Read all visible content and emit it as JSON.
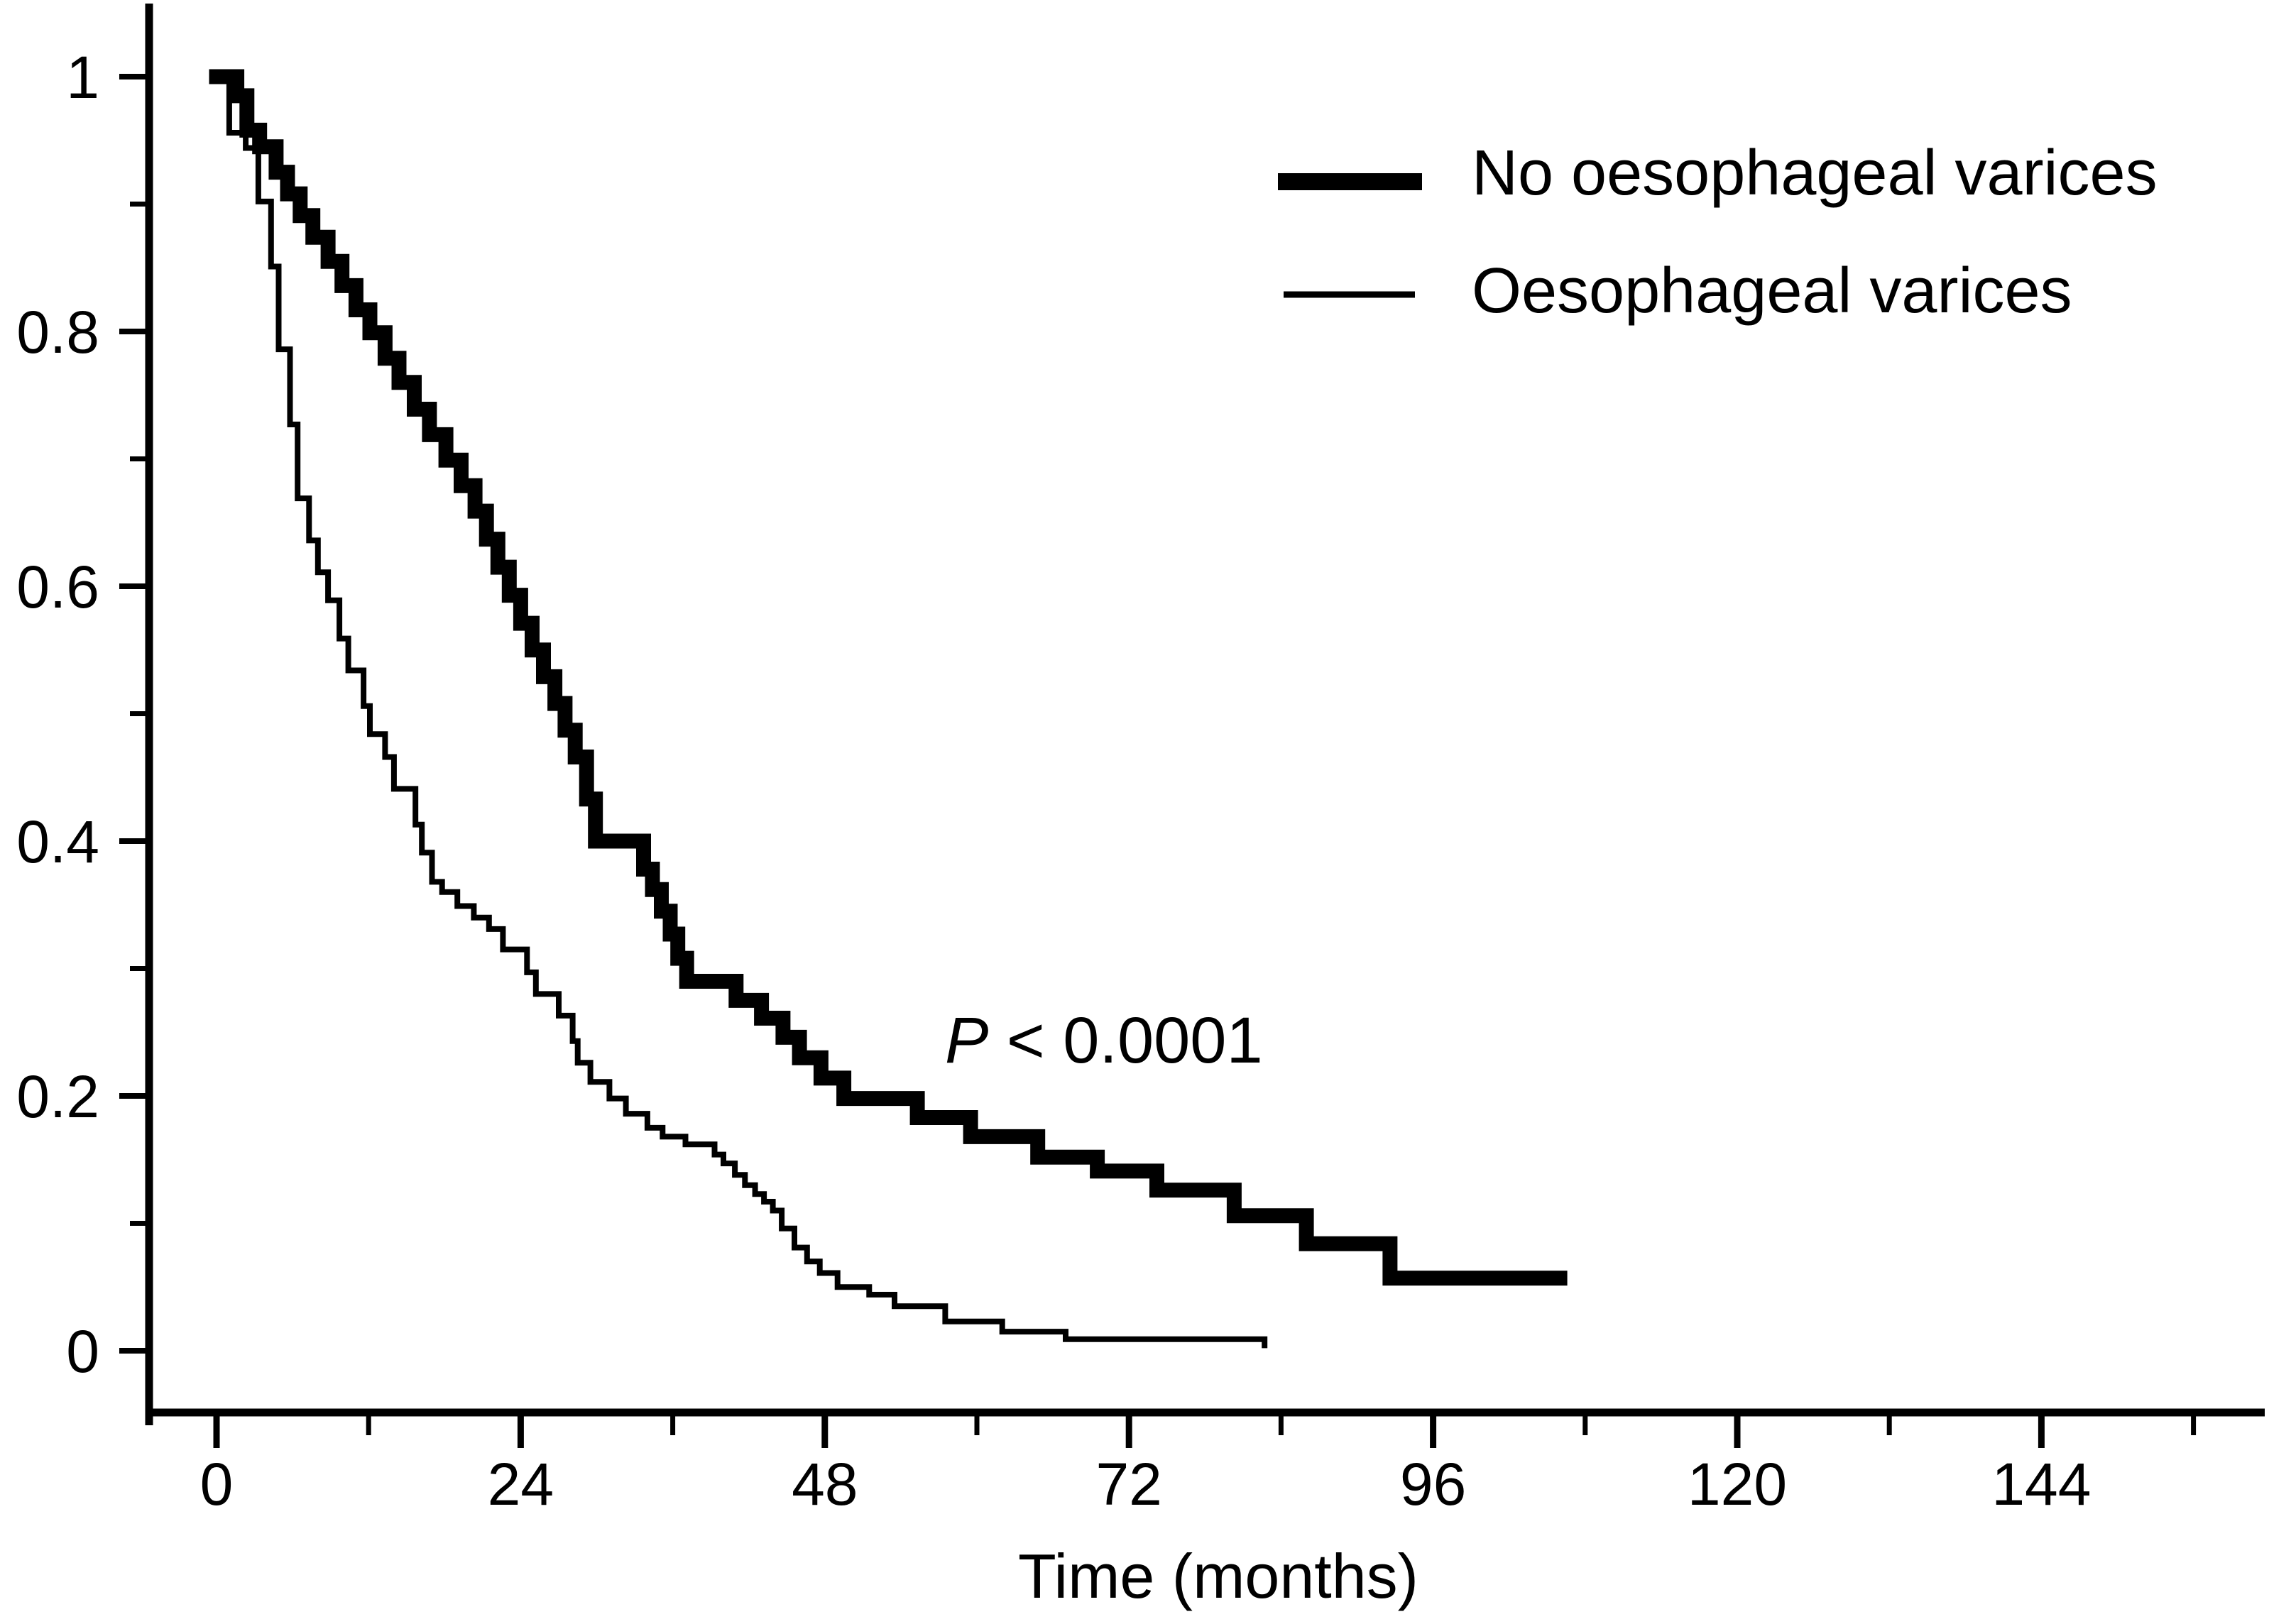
{
  "chart_data": {
    "type": "line",
    "subtype": "kaplan-meier-survival-steps",
    "title": "",
    "xlabel": "Time (months)",
    "ylabel": "",
    "xlim": [
      0,
      161
    ],
    "ylim": [
      0,
      1.05
    ],
    "grid": false,
    "background_color": "#ffffff",
    "line_color": "#000000",
    "x_major_ticks": [
      0,
      24,
      48,
      72,
      96,
      120,
      144
    ],
    "x_major_labels": [
      "0",
      "24",
      "48",
      "72",
      "96",
      "120",
      "144"
    ],
    "x_minor_ticks": [
      12,
      36,
      60,
      84,
      108,
      132,
      156
    ],
    "y_major_ticks": [
      1,
      0.8,
      0.6,
      0.4,
      0.2,
      0
    ],
    "y_major_labels": [
      "1",
      "0.8",
      "0.6",
      "0.4",
      "0.2",
      "0"
    ],
    "y_minor_ticks": [
      0.9,
      0.7,
      0.5,
      0.3,
      0.1
    ],
    "legend_position": "upper right",
    "annotation": {
      "p_italic": "P",
      "p_rest": " < 0.0001"
    },
    "series": [
      {
        "name": "No oesophageal varices",
        "line_weight": "thick",
        "color": "#000000",
        "end_time": 106,
        "steps": [
          [
            0,
            1.0
          ],
          [
            1.6,
            0.985
          ],
          [
            2.4,
            0.958
          ],
          [
            3.4,
            0.945
          ],
          [
            4.7,
            0.925
          ],
          [
            5.6,
            0.908
          ],
          [
            6.6,
            0.891
          ],
          [
            7.6,
            0.874
          ],
          [
            8.8,
            0.855
          ],
          [
            9.9,
            0.836
          ],
          [
            11,
            0.817
          ],
          [
            12.1,
            0.799
          ],
          [
            13.3,
            0.779
          ],
          [
            14.4,
            0.76
          ],
          [
            15.6,
            0.739
          ],
          [
            16.8,
            0.719
          ],
          [
            18.1,
            0.699
          ],
          [
            19.3,
            0.679
          ],
          [
            20.4,
            0.659
          ],
          [
            21.3,
            0.637
          ],
          [
            22.2,
            0.615
          ],
          [
            23.1,
            0.593
          ],
          [
            24,
            0.571
          ],
          [
            24.9,
            0.55
          ],
          [
            25.8,
            0.529
          ],
          [
            26.7,
            0.508
          ],
          [
            27.5,
            0.487
          ],
          [
            28.3,
            0.466
          ],
          [
            29.2,
            0.433
          ],
          [
            29.9,
            0.4
          ],
          [
            33.7,
            0.378
          ],
          [
            34.4,
            0.362
          ],
          [
            35.1,
            0.345
          ],
          [
            35.8,
            0.327
          ],
          [
            36.4,
            0.308
          ],
          [
            37.1,
            0.29
          ],
          [
            41,
            0.275
          ],
          [
            43,
            0.261
          ],
          [
            44.7,
            0.246
          ],
          [
            46,
            0.23
          ],
          [
            47.7,
            0.214
          ],
          [
            49.5,
            0.198
          ],
          [
            55.3,
            0.183
          ],
          [
            59.5,
            0.168
          ],
          [
            64.8,
            0.152
          ],
          [
            69.5,
            0.141
          ],
          [
            74.2,
            0.126
          ],
          [
            80.3,
            0.106
          ],
          [
            86,
            0.084
          ],
          [
            92.6,
            0.057
          ]
        ]
      },
      {
        "name": "Oesophageal varices",
        "line_weight": "thin",
        "color": "#000000",
        "end_time": 82.7,
        "end_drop_to": 0.002,
        "steps": [
          [
            0,
            1.0
          ],
          [
            1,
            0.956
          ],
          [
            2.3,
            0.944
          ],
          [
            3.3,
            0.902
          ],
          [
            4.3,
            0.851
          ],
          [
            4.9,
            0.786
          ],
          [
            5.8,
            0.727
          ],
          [
            6.4,
            0.669
          ],
          [
            7.3,
            0.636
          ],
          [
            8,
            0.611
          ],
          [
            8.8,
            0.589
          ],
          [
            9.7,
            0.559
          ],
          [
            10.4,
            0.534
          ],
          [
            11.6,
            0.506
          ],
          [
            12.1,
            0.484
          ],
          [
            13.3,
            0.466
          ],
          [
            14,
            0.441
          ],
          [
            15.7,
            0.413
          ],
          [
            16.2,
            0.391
          ],
          [
            17,
            0.368
          ],
          [
            17.8,
            0.36
          ],
          [
            19,
            0.349
          ],
          [
            20.3,
            0.34
          ],
          [
            21.5,
            0.331
          ],
          [
            22.6,
            0.315
          ],
          [
            24.5,
            0.297
          ],
          [
            25.2,
            0.28
          ],
          [
            27,
            0.263
          ],
          [
            28.1,
            0.243
          ],
          [
            28.5,
            0.226
          ],
          [
            29.5,
            0.211
          ],
          [
            31,
            0.198
          ],
          [
            32.3,
            0.186
          ],
          [
            34,
            0.175
          ],
          [
            35.2,
            0.168
          ],
          [
            37,
            0.162
          ],
          [
            39.3,
            0.154
          ],
          [
            40,
            0.147
          ],
          [
            40.9,
            0.138
          ],
          [
            41.7,
            0.13
          ],
          [
            42.5,
            0.123
          ],
          [
            43.2,
            0.117
          ],
          [
            43.9,
            0.11
          ],
          [
            44.6,
            0.096
          ],
          [
            45.6,
            0.081
          ],
          [
            46.6,
            0.07
          ],
          [
            47.6,
            0.061
          ],
          [
            49,
            0.05
          ],
          [
            51.5,
            0.044
          ],
          [
            53.5,
            0.035
          ],
          [
            57.5,
            0.023
          ],
          [
            62,
            0.015
          ],
          [
            67,
            0.009
          ]
        ]
      }
    ]
  }
}
